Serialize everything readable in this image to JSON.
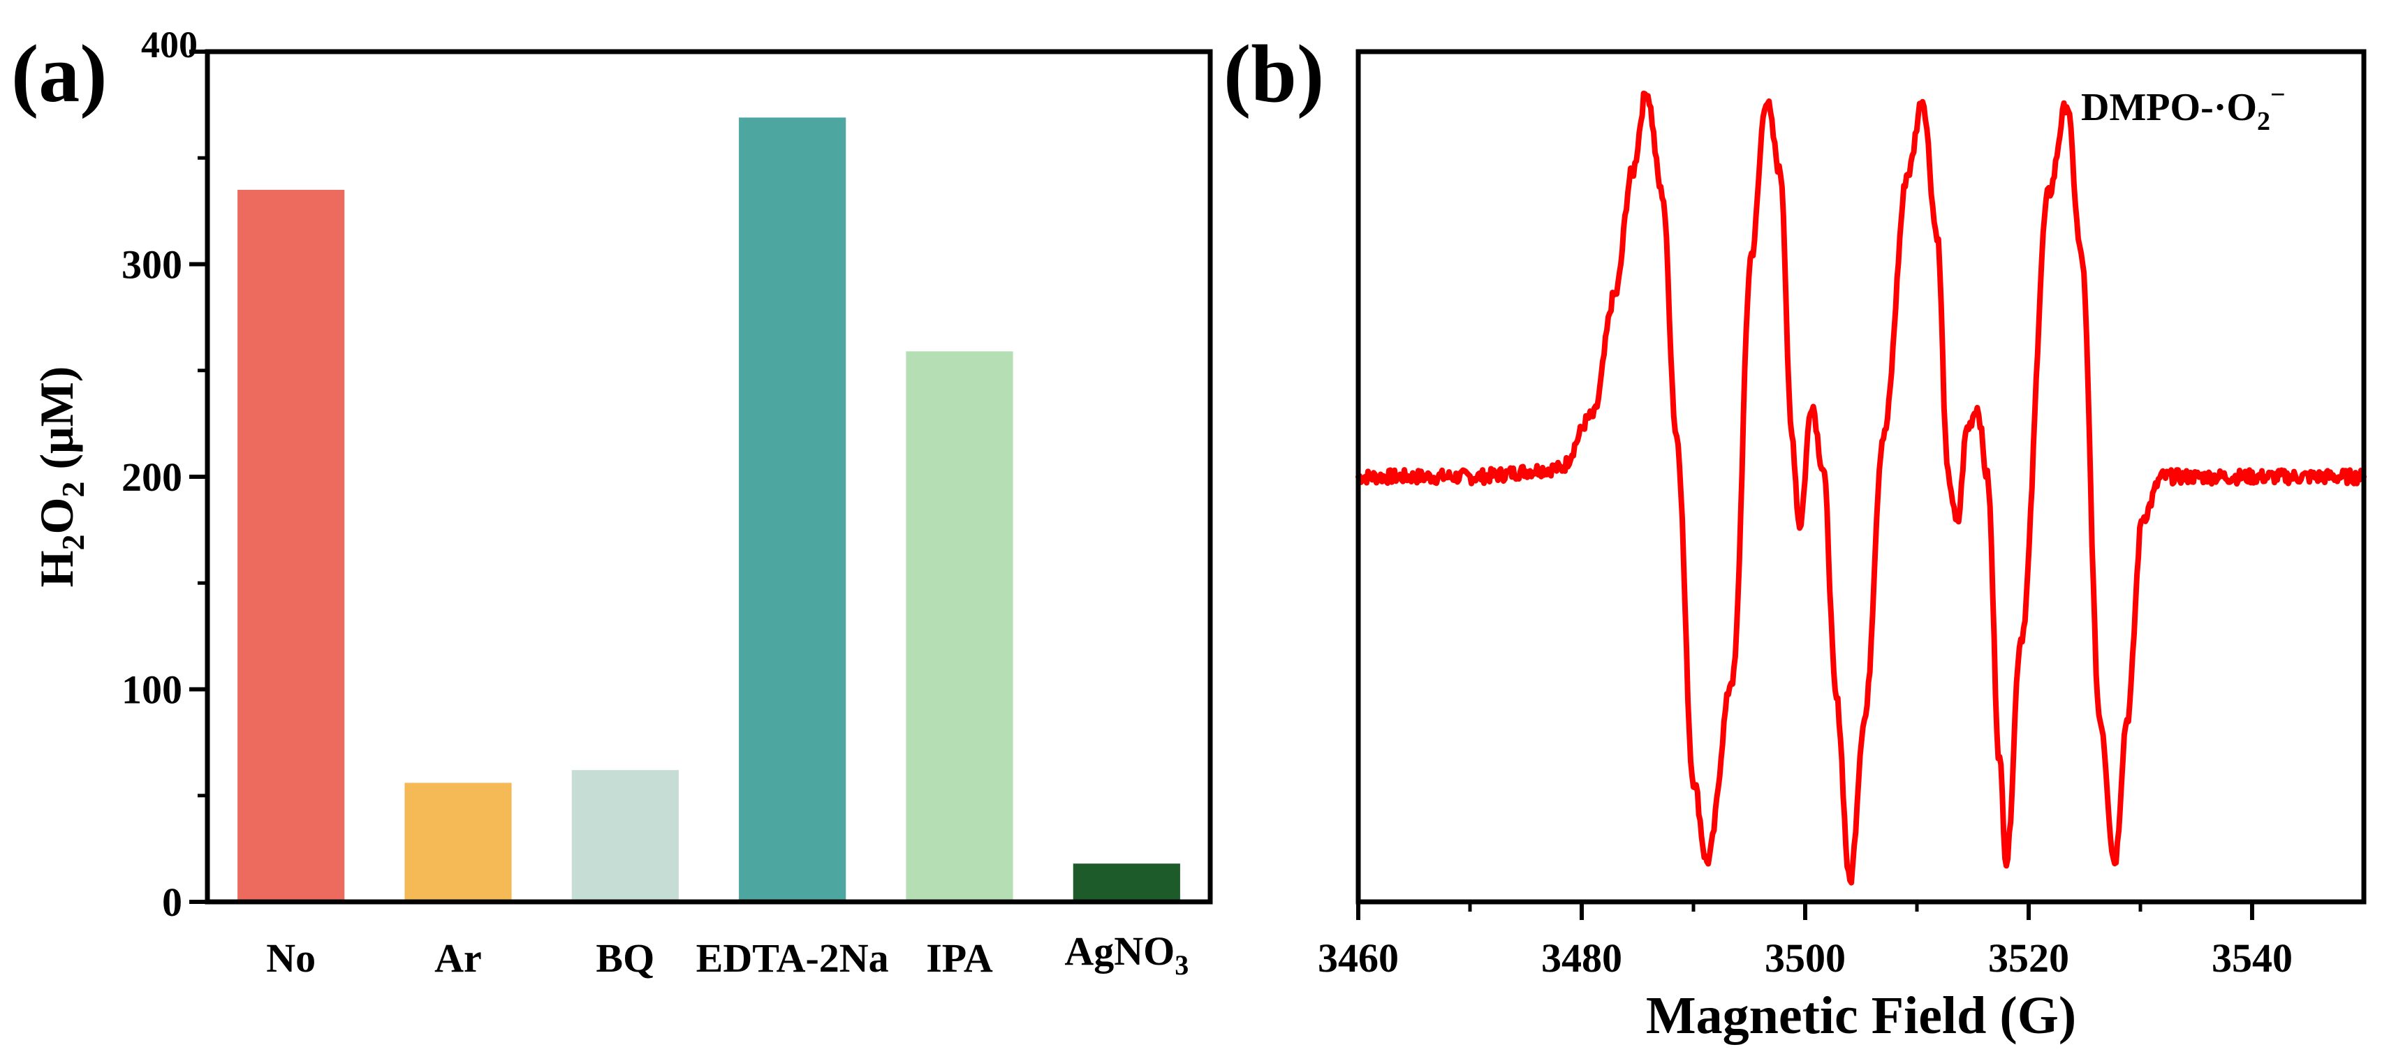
{
  "chart_data": [
    {
      "panel_label": "(a)",
      "type": "bar",
      "categories": [
        "No",
        "Ar",
        "BQ",
        "EDTA-2Na",
        "IPA",
        "AgNO3"
      ],
      "category_labels": [
        {
          "main": "No",
          "sub": ""
        },
        {
          "main": "Ar",
          "sub": ""
        },
        {
          "main": "BQ",
          "sub": ""
        },
        {
          "main": "EDTA-2Na",
          "sub": ""
        },
        {
          "main": "IPA",
          "sub": ""
        },
        {
          "main": "AgNO",
          "sub": "3"
        }
      ],
      "values": [
        335,
        56,
        62,
        369,
        259,
        18
      ],
      "colors": [
        "#EC6B5E",
        "#F5B955",
        "#C5DDD5",
        "#4DA6A0",
        "#B5DEB5",
        "#1D5B2A"
      ],
      "ylabel": {
        "H": "H",
        "sub1": "2",
        "O": "O",
        "sub2": "2",
        "rest": " (μM)"
      },
      "ylim": [
        0,
        400
      ],
      "yticks": [
        0,
        100,
        200,
        300,
        400
      ],
      "xlabel": ""
    },
    {
      "panel_label": "(b)",
      "type": "line",
      "series_color": "#FF0000",
      "annotation": {
        "main": "DMPO-·O",
        "sub": "2",
        "sup": "−"
      },
      "xlabel": "Magnetic Field (G)",
      "xlim": [
        3460,
        3550
      ],
      "xticks": [
        3460,
        3480,
        3500,
        3520,
        3540
      ],
      "ylim": [
        -1.05,
        1.05
      ],
      "y_axis_ticks_shown": false,
      "series": [
        {
          "name": "DMPO-·O2−",
          "x": [
            3460,
            3470,
            3478,
            3481,
            3483,
            3484.5,
            3485.8,
            3487.2,
            3488.5,
            3490.0,
            3491.2,
            3493.5,
            3495.2,
            3496.5,
            3497.8,
            3498.8,
            3499.5,
            3500.6,
            3501.6,
            3502.8,
            3504.0,
            3505.3,
            3507.0,
            3509.2,
            3510.5,
            3511.8,
            3512.8,
            3513.6,
            3514.5,
            3515.4,
            3516.3,
            3517.4,
            3518.0,
            3519.3,
            3521.8,
            3523.4,
            3524.7,
            3526.4,
            3527.7,
            3528.8,
            3530.2,
            3532.0,
            3540,
            3550
          ],
          "y": [
            0.0,
            0.0,
            0.02,
            0.15,
            0.45,
            0.75,
            0.95,
            0.7,
            0.1,
            -0.75,
            -0.95,
            -0.5,
            0.55,
            0.93,
            0.75,
            0.1,
            -0.12,
            0.18,
            0.02,
            -0.55,
            -1.0,
            -0.6,
            0.1,
            0.75,
            0.93,
            0.6,
            0.0,
            -0.12,
            0.12,
            0.17,
            0.0,
            -0.7,
            -0.95,
            -0.4,
            0.7,
            0.92,
            0.55,
            -0.6,
            -0.95,
            -0.6,
            -0.1,
            0.0,
            0.0,
            0.0
          ]
        }
      ]
    }
  ]
}
